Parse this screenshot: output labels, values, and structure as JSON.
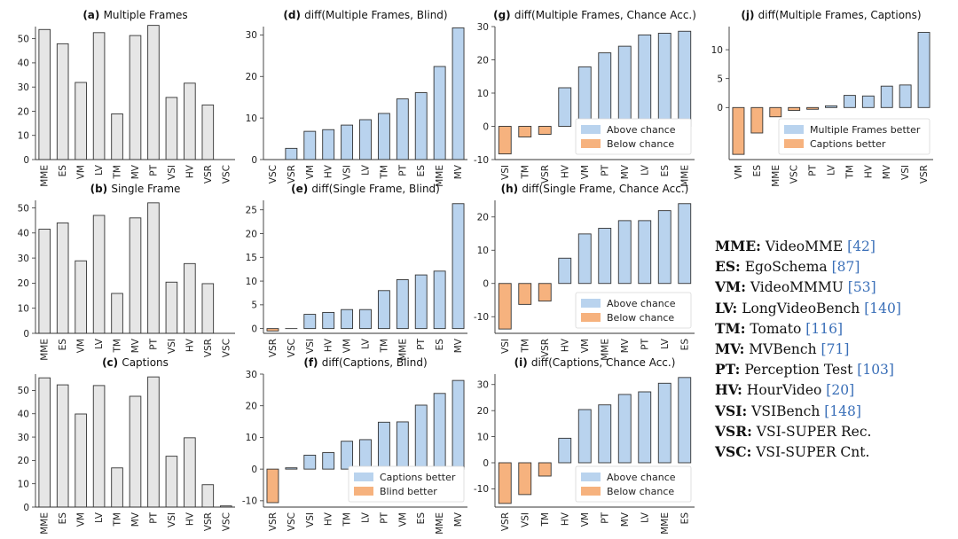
{
  "colors": {
    "gray": "#e6e6e6",
    "blue": "#b9d3ee",
    "orange": "#f6b27e",
    "edge": "#333333"
  },
  "chart_data": [
    {
      "id": "a",
      "type": "bar",
      "label": "(a)",
      "title": "Multiple Frames",
      "categories": [
        "MME",
        "ES",
        "VM",
        "LV",
        "TM",
        "MV",
        "PT",
        "VSI",
        "HV",
        "VSR",
        "VSC"
      ],
      "values": [
        53.8,
        47.9,
        31.9,
        52.5,
        18.9,
        51.3,
        55.5,
        25.7,
        31.6,
        22.6,
        0
      ],
      "ylim": [
        0,
        55
      ],
      "yticks": [
        0,
        10,
        20,
        30,
        40,
        50
      ],
      "color": "gray"
    },
    {
      "id": "d",
      "type": "bar",
      "label": "(d)",
      "title": "diff(Multiple Frames, Blind)",
      "categories": [
        "VSC",
        "VSR",
        "VM",
        "HV",
        "VSI",
        "LV",
        "TM",
        "PT",
        "ES",
        "MME",
        "MV"
      ],
      "values": [
        0,
        2.7,
        6.8,
        7.2,
        8.3,
        9.6,
        11.1,
        14.6,
        16.1,
        22.4,
        31.7
      ],
      "ylim": [
        0,
        32
      ],
      "yticks": [
        0,
        10,
        20,
        30
      ],
      "color": "blue"
    },
    {
      "id": "g",
      "type": "bar",
      "label": "(g)",
      "title": "diff(Multiple Frames, Chance Acc.)",
      "categories": [
        "VSI",
        "TM",
        "VSR",
        "HV",
        "VM",
        "PT",
        "MV",
        "LV",
        "ES",
        "MME"
      ],
      "values": [
        -8.3,
        -3.2,
        -2.4,
        11.6,
        17.9,
        22.1,
        24.1,
        27.5,
        28.0,
        28.6
      ],
      "ylim": [
        -10,
        30
      ],
      "yticks": [
        -10,
        0,
        10,
        20,
        30
      ],
      "legend": [
        {
          "label": "Above chance",
          "color": "blue"
        },
        {
          "label": "Below chance",
          "color": "orange"
        }
      ]
    },
    {
      "id": "j",
      "type": "bar",
      "label": "(j)",
      "title": "diff(Multiple Frames, Captions)",
      "categories": [
        "VM",
        "ES",
        "MME",
        "VSC",
        "PT",
        "LV",
        "TM",
        "HV",
        "MV",
        "VSI",
        "VSR"
      ],
      "values": [
        -8.1,
        -4.4,
        -1.6,
        -0.5,
        -0.3,
        0.3,
        2.1,
        2.0,
        3.7,
        3.9,
        13.0
      ],
      "ylim": [
        -9,
        14
      ],
      "yticks": [
        0,
        5,
        10
      ],
      "legend": [
        {
          "label": "Multiple Frames better",
          "color": "blue"
        },
        {
          "label": "Captions better",
          "color": "orange"
        }
      ]
    },
    {
      "id": "b",
      "type": "bar",
      "label": "(b)",
      "title": "Single Frame",
      "categories": [
        "MME",
        "ES",
        "VM",
        "LV",
        "TM",
        "MV",
        "PT",
        "VSI",
        "HV",
        "VSR",
        "VSC"
      ],
      "values": [
        41.5,
        44.0,
        28.9,
        47.0,
        15.9,
        46.0,
        52.0,
        20.4,
        27.8,
        19.8,
        0
      ],
      "ylim": [
        0,
        53
      ],
      "yticks": [
        0,
        10,
        20,
        30,
        40,
        50
      ],
      "color": "gray"
    },
    {
      "id": "e",
      "type": "bar",
      "label": "(e)",
      "title": "diff(Single Frame, Blind)",
      "categories": [
        "VSR",
        "VSC",
        "VSI",
        "HV",
        "VM",
        "LV",
        "TM",
        "MME",
        "PT",
        "ES",
        "MV"
      ],
      "values": [
        -0.5,
        0,
        3.0,
        3.4,
        4.0,
        4.0,
        8.0,
        10.3,
        11.3,
        12.1,
        26.3
      ],
      "ylim": [
        -1,
        27
      ],
      "yticks": [
        0,
        5,
        10,
        15,
        20,
        25
      ],
      "color": "blue"
    },
    {
      "id": "h",
      "type": "bar",
      "label": "(h)",
      "title": "diff(Single Frame, Chance Acc.)",
      "categories": [
        "VSI",
        "TM",
        "VSR",
        "HV",
        "VM",
        "MME",
        "MV",
        "PT",
        "LV",
        "ES"
      ],
      "values": [
        -13.7,
        -6.3,
        -5.3,
        7.6,
        14.9,
        16.6,
        18.9,
        18.9,
        21.9,
        24.0
      ],
      "ylim": [
        -15,
        25
      ],
      "yticks": [
        -10,
        0,
        10,
        20
      ],
      "legend": [
        {
          "label": "Above chance",
          "color": "blue"
        },
        {
          "label": "Below chance",
          "color": "orange"
        }
      ]
    },
    {
      "id": "c",
      "type": "bar",
      "label": "(c)",
      "title": "Captions",
      "categories": [
        "MME",
        "ES",
        "VM",
        "LV",
        "TM",
        "MV",
        "PT",
        "VSI",
        "HV",
        "VSR",
        "VSC"
      ],
      "values": [
        55.4,
        52.4,
        39.9,
        52.1,
        16.8,
        47.5,
        55.8,
        21.8,
        29.7,
        9.6,
        0.5
      ],
      "ylim": [
        0,
        57
      ],
      "yticks": [
        0,
        10,
        20,
        30,
        40,
        50
      ],
      "color": "gray"
    },
    {
      "id": "f",
      "type": "bar",
      "label": "(f)",
      "title": "diff(Captions, Blind)",
      "categories": [
        "VSR",
        "VSC",
        "VSI",
        "HV",
        "TM",
        "LV",
        "PT",
        "VM",
        "ES",
        "MME",
        "MV"
      ],
      "values": [
        -10.6,
        0.4,
        4.4,
        5.2,
        8.8,
        9.3,
        14.8,
        14.9,
        20.2,
        23.9,
        28.0
      ],
      "ylim": [
        -12,
        30
      ],
      "yticks": [
        -10,
        0,
        10,
        20,
        30
      ],
      "legend": [
        {
          "label": "Captions better",
          "color": "blue"
        },
        {
          "label": "Blind better",
          "color": "orange"
        }
      ]
    },
    {
      "id": "i",
      "type": "bar",
      "label": "(i)",
      "title": "diff(Captions, Chance Acc.)",
      "categories": [
        "VSR",
        "VSI",
        "TM",
        "HV",
        "VM",
        "PT",
        "MV",
        "LV",
        "MME",
        "ES"
      ],
      "values": [
        -15.6,
        -12.2,
        -5.1,
        9.4,
        20.4,
        22.2,
        26.2,
        27.2,
        30.5,
        32.7
      ],
      "ylim": [
        -17,
        34
      ],
      "yticks": [
        -10,
        0,
        10,
        20,
        30
      ],
      "legend": [
        {
          "label": "Above chance",
          "color": "blue"
        },
        {
          "label": "Below chance",
          "color": "orange"
        }
      ]
    }
  ],
  "abbreviations": [
    {
      "key": "MME",
      "name": "VideoMME",
      "cite": "42"
    },
    {
      "key": "ES",
      "name": "EgoSchema",
      "cite": "87"
    },
    {
      "key": "VM",
      "name": "VideoMMMU",
      "cite": "53"
    },
    {
      "key": "LV",
      "name": "LongVideoBench",
      "cite": "140"
    },
    {
      "key": "TM",
      "name": "Tomato",
      "cite": "116"
    },
    {
      "key": "MV",
      "name": "MVBench",
      "cite": "71"
    },
    {
      "key": "PT",
      "name": "Perception Test",
      "cite": "103"
    },
    {
      "key": "HV",
      "name": "HourVideo",
      "cite": "20"
    },
    {
      "key": "VSI",
      "name": "VSIBench",
      "cite": "148"
    },
    {
      "key": "VSR",
      "name": "VSI-SUPER Rec.",
      "cite": ""
    },
    {
      "key": "VSC",
      "name": "VSI-SUPER Cnt.",
      "cite": ""
    }
  ]
}
